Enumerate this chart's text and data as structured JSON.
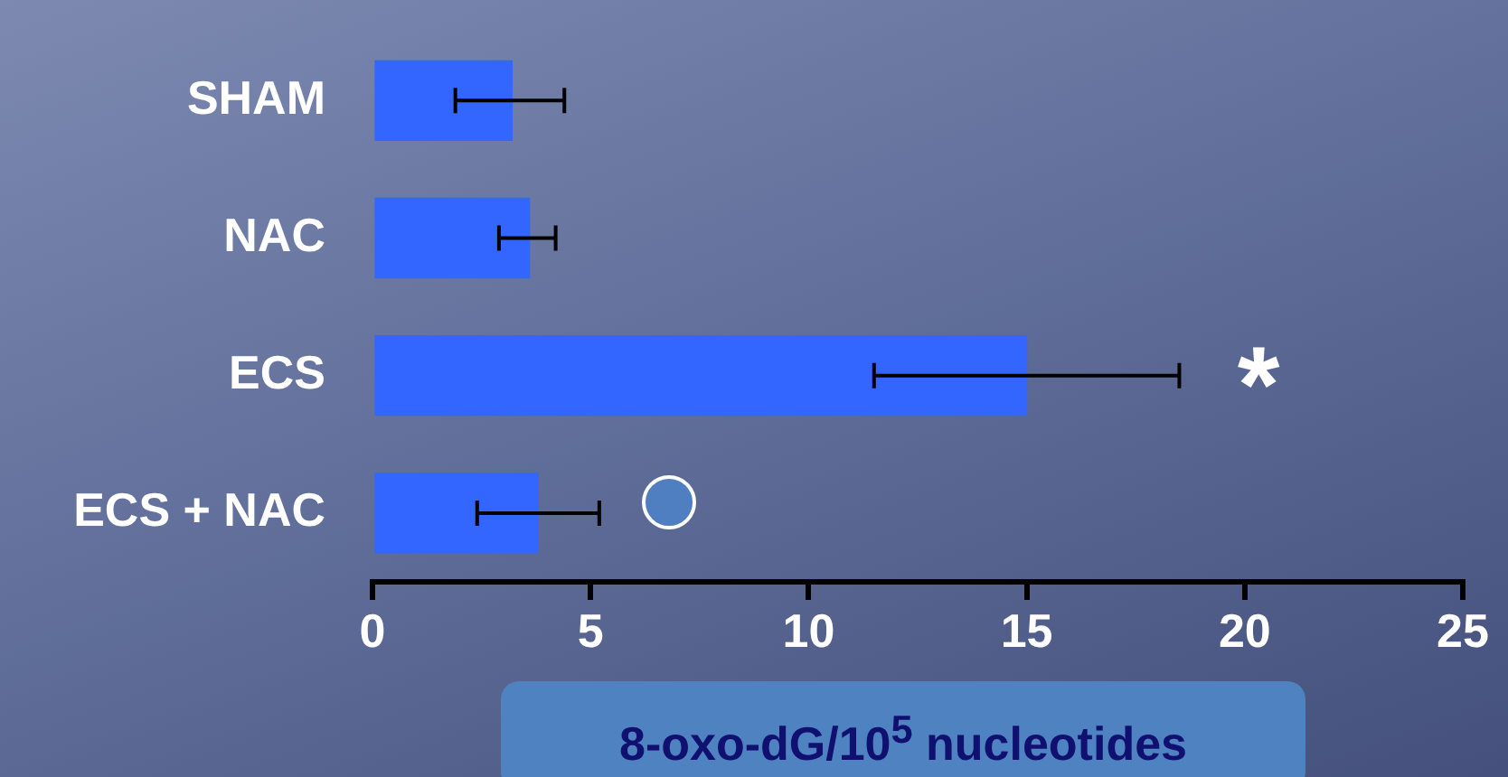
{
  "chart_data": {
    "type": "bar",
    "orientation": "horizontal",
    "categories": [
      "SHAM",
      "NAC",
      "ECS",
      "ECS + NAC"
    ],
    "values": [
      3.2,
      3.6,
      15.0,
      3.8
    ],
    "color": "#3366ff",
    "errors": [
      [
        1.9,
        4.4
      ],
      [
        2.9,
        4.2
      ],
      [
        11.5,
        18.5
      ],
      [
        2.4,
        5.2
      ]
    ],
    "xlim": [
      0,
      25
    ],
    "xticks": [
      0,
      5,
      10,
      15,
      20,
      25
    ],
    "xlabel": "8-oxo-dG/10$^{5}$ nucleotides",
    "annotations": [
      "*"
    ],
    "grid": false,
    "legend": false
  }
}
